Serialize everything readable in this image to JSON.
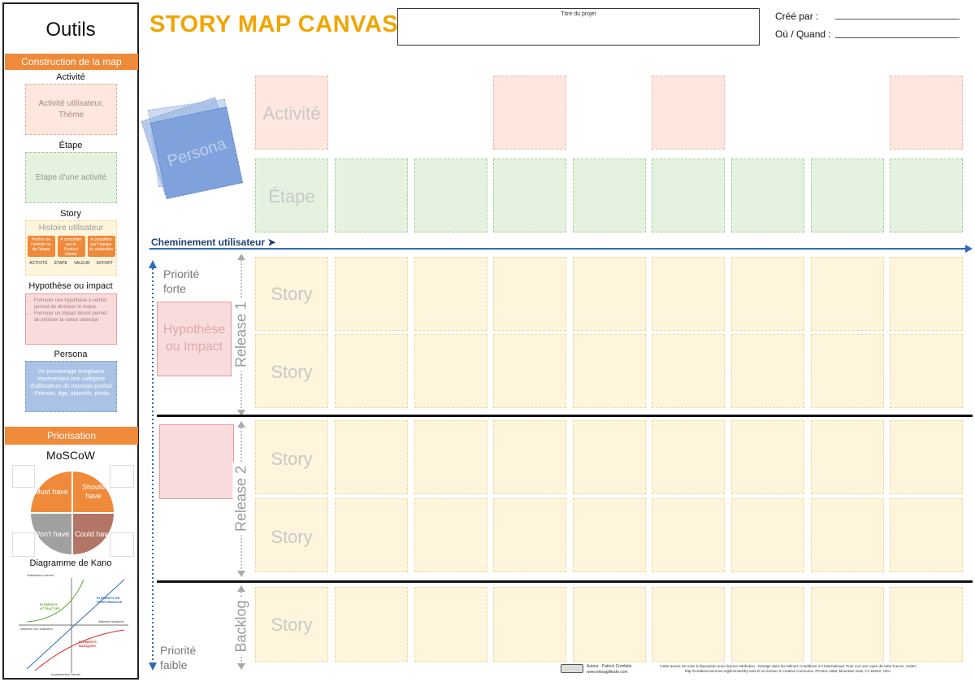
{
  "sidebar": {
    "title": "Outils",
    "construction_header": "Construction de la map",
    "activity_label": "Activité",
    "activity_box": "Activité utilisateur, Thème",
    "step_label": "Étape",
    "step_box": "Etape d'une activité",
    "story_label": "Story",
    "story_box_title": "Histoire utilisateur",
    "story_chips": [
      "Portion de l'activité ou de l'étape",
      "A compléter par le Product Owner",
      "A compléter par l'équipe de réalisation"
    ],
    "story_columns": [
      "ACTIVITÉ",
      "ÉTAPE",
      "VALEUR",
      "EFFORT"
    ],
    "hyp_label": "Hypothèse ou impact",
    "hyp_items": [
      "Formuler une hypothèse à vérifier permet de diminuer le risque.",
      "Formuler un impact désiré permet de prioriser la valeur attendue"
    ],
    "persona_label": "Persona",
    "persona_box": "Un personnage imaginaire représentant une catégorie d'utilisateurs du nouveau produit : Prénom, âge, objectifs, photo, ...",
    "prioritization_header": "Priorisation",
    "moscow_title": "MoSCoW",
    "moscow": [
      "Must have",
      "Should have",
      "Won't have",
      "Could have"
    ],
    "kano_title": "Diagramme de Kano",
    "kano_labels": {
      "top": "Satisfaction élevée",
      "bottom": "Insatisfaction élevée",
      "left": "Attentes non réalisées",
      "right": "Attentes réalisées",
      "attractive": "ÉLÉMENTS ATTRACTIFS",
      "performance": "ÉLÉMENTS DE PERFORMANCE",
      "basic": "ÉLÉMENTS BASIQUES"
    }
  },
  "header": {
    "title": "STORY MAP CANVAS",
    "project_label": "Titre du projet",
    "created_by": "Créé par :",
    "where_when": "Où / Quand :"
  },
  "canvas": {
    "persona": "Persona",
    "activity": "Activité",
    "step": "Étape",
    "journey": "Cheminement utilisateur ➤",
    "priority_high": "Priorité forte",
    "priority_low": "Priorité faible",
    "hypothesis": "Hypothèse ou Impact",
    "release1": "Release 1",
    "release2": "Release 2",
    "backlog": "Backlog",
    "story": "Story"
  },
  "footer": {
    "author": "Auteur : Patrick Comfaits  www.elesagilitude.com",
    "license": "Cette œuvre est mise à disposition sous licence Attribution - Partage dans les Mêmes Conditions 4.0 International. Pour voir une copie de cette licence, visitez http://creativecommons.org/licenses/by-sa/4.0/ ou écrivez à Creative Commons, PO Box 1866, Mountain View, CA 94042, USA."
  },
  "colors": {
    "accent": "#f0a500",
    "band": "#ef8a3a",
    "journey": "#2f6bb8"
  }
}
